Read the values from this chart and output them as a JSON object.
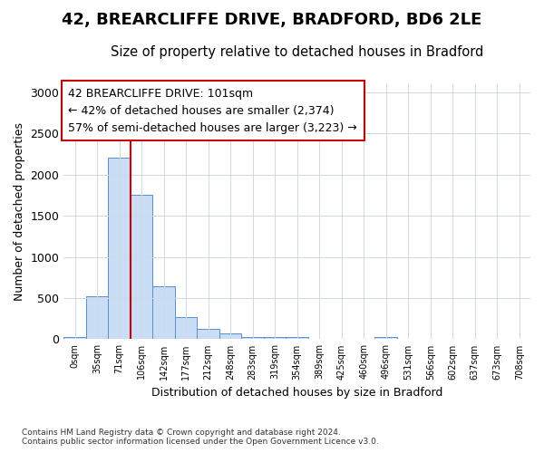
{
  "title1": "42, BREARCLIFFE DRIVE, BRADFORD, BD6 2LE",
  "title2": "Size of property relative to detached houses in Bradford",
  "xlabel": "Distribution of detached houses by size in Bradford",
  "ylabel": "Number of detached properties",
  "bar_labels": [
    "0sqm",
    "35sqm",
    "71sqm",
    "106sqm",
    "142sqm",
    "177sqm",
    "212sqm",
    "248sqm",
    "283sqm",
    "319sqm",
    "354sqm",
    "389sqm",
    "425sqm",
    "460sqm",
    "496sqm",
    "531sqm",
    "566sqm",
    "602sqm",
    "637sqm",
    "673sqm",
    "708sqm"
  ],
  "bar_values": [
    30,
    520,
    2200,
    1750,
    640,
    270,
    130,
    75,
    30,
    30,
    30,
    0,
    0,
    0,
    30,
    0,
    0,
    0,
    0,
    0,
    0
  ],
  "bar_color": "#c9ddf5",
  "bar_edge_color": "#5a8fc8",
  "grid_color": "#d0d8e8",
  "vline_x": 3,
  "vline_color": "#cc0000",
  "annotation_text": "42 BREARCLIFFE DRIVE: 101sqm\n← 42% of detached houses are smaller (2,374)\n57% of semi-detached houses are larger (3,223) →",
  "footnote1": "Contains HM Land Registry data © Crown copyright and database right 2024.",
  "footnote2": "Contains public sector information licensed under the Open Government Licence v3.0.",
  "ylim_max": 3100,
  "yticks": [
    0,
    500,
    1000,
    1500,
    2000,
    2500,
    3000
  ],
  "bg_color": "#ffffff",
  "plot_bg_color": "#ffffff",
  "title1_fontsize": 13,
  "title2_fontsize": 10.5
}
